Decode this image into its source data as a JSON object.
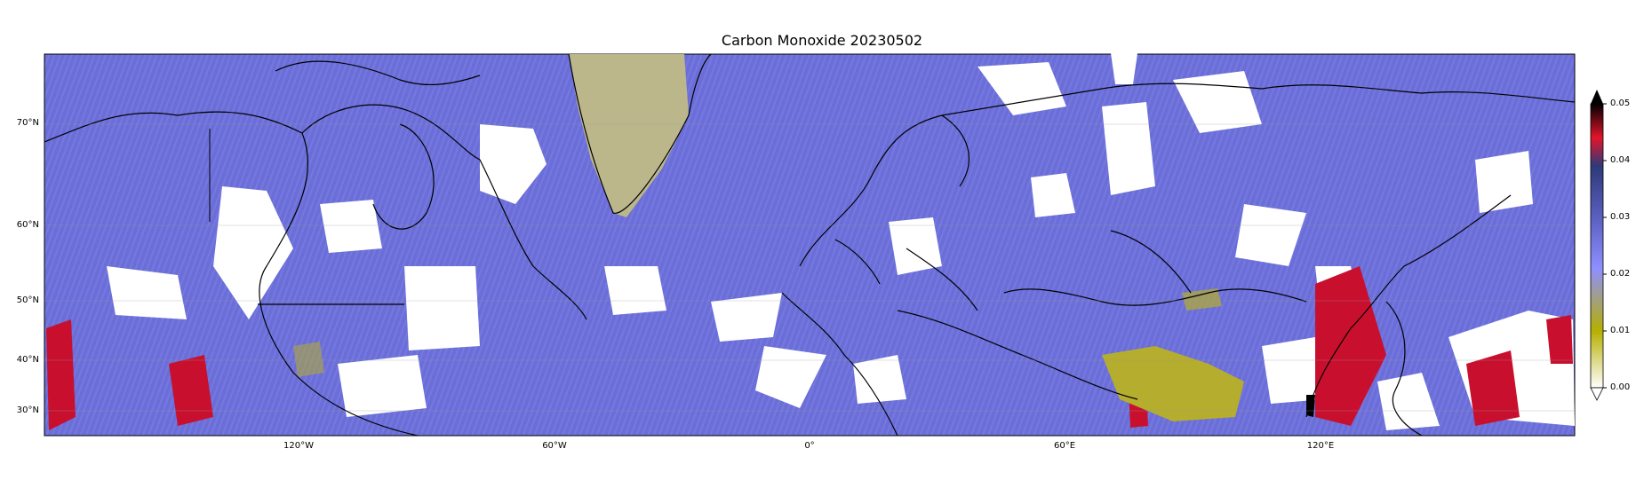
{
  "title": "Carbon Monoxide 20230502",
  "lat_labels": [
    "70°N",
    "60°N",
    "50°N",
    "40°N",
    "30°N"
  ],
  "lon_labels": [
    "120°W",
    "60°W",
    "0°",
    "60°E",
    "120°E"
  ],
  "colorbar": {
    "ticks": [
      "0.00",
      "0.01",
      "0.02",
      "0.03",
      "0.04",
      "0.05"
    ],
    "extend": "max",
    "colors": [
      "#ffffff",
      "#b5b000",
      "#7b7bff",
      "#3a3f8f",
      "#e2142a",
      "#000000"
    ]
  },
  "colors": {
    "background": "#6c6fd4",
    "missing": "#ffffff",
    "coastline": "#000000",
    "high": "#c8102e",
    "low": "#b5ad2e"
  }
}
